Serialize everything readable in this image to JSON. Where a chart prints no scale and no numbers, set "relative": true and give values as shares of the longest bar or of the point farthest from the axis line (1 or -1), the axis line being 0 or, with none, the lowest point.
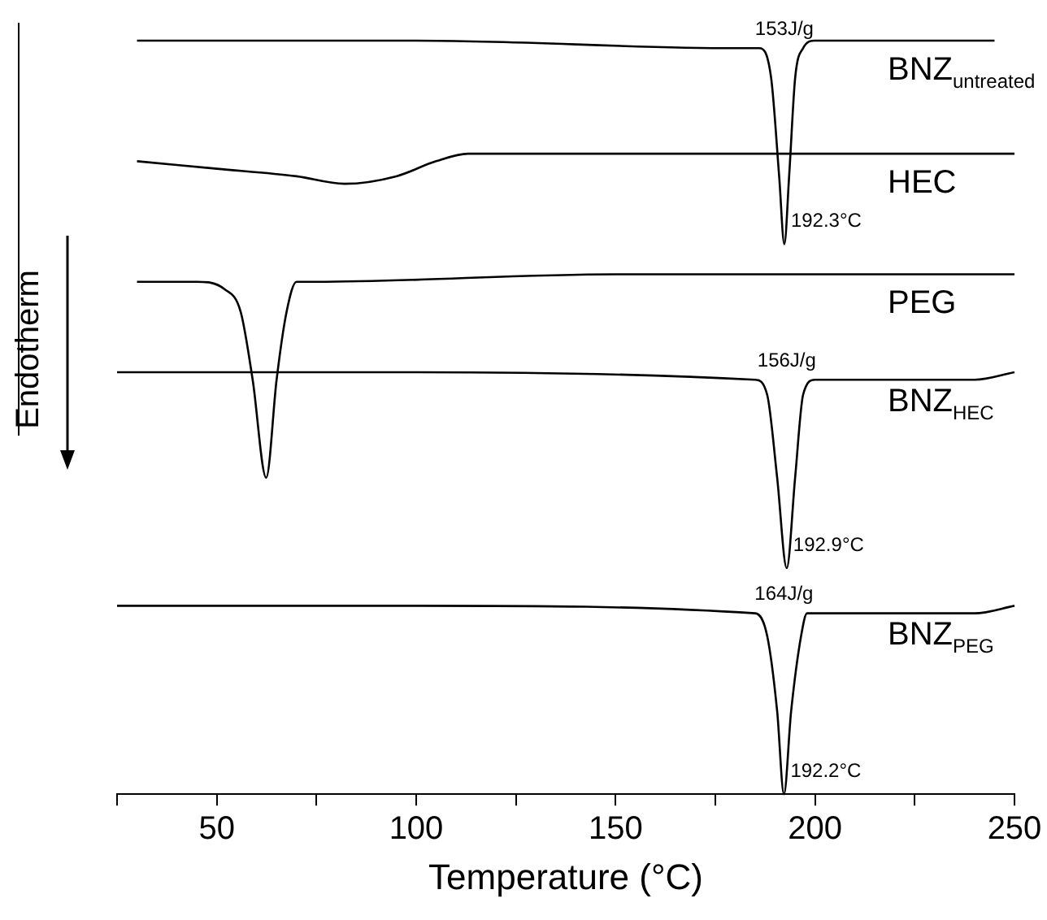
{
  "chart_data": {
    "type": "line",
    "relative": true,
    "xlabel": "Temperature (°C)",
    "ylabel": "Endotherm",
    "xlim": [
      25,
      250
    ],
    "xticks": [
      {
        "value": 25,
        "label": null
      },
      50,
      {
        "value": 75,
        "label": null
      },
      100,
      {
        "value": 125,
        "label": null
      },
      150,
      {
        "value": 175,
        "label": null
      },
      200,
      {
        "value": 225,
        "label": null
      },
      250
    ],
    "grid": false,
    "legend": false,
    "marker": "none",
    "line_style": "solid",
    "series": [
      {
        "name": "BNZ$_{untreated}$",
        "color": "#000000",
        "x": [
          30,
          100,
          180,
          186,
          189,
          191,
          192.3,
          193.5,
          195,
          197,
          200,
          245
        ],
        "values": [
          1.0,
          1.0,
          0.99,
          0.99,
          0.95,
          0.82,
          0.73,
          0.82,
          0.95,
          0.99,
          1.0,
          1.0
        ]
      },
      {
        "name": "HEC",
        "color": "#000000",
        "x": [
          30,
          50,
          70,
          82,
          95,
          105,
          113,
          150,
          200,
          250
        ],
        "values": [
          0.84,
          0.83,
          0.82,
          0.81,
          0.82,
          0.84,
          0.85,
          0.85,
          0.85,
          0.85
        ]
      },
      {
        "name": "PEG",
        "color": "#000000",
        "x": [
          30,
          45,
          52,
          56,
          59,
          62.4,
          65,
          67.5,
          70,
          75,
          150,
          250
        ],
        "values": [
          0.68,
          0.68,
          0.67,
          0.64,
          0.55,
          0.42,
          0.55,
          0.64,
          0.68,
          0.68,
          0.69,
          0.69
        ]
      },
      {
        "name": "BNZ$_{HEC}$",
        "color": "#000000",
        "x": [
          25,
          100,
          185,
          188,
          190.5,
          192.9,
          195,
          197,
          200,
          240,
          250
        ],
        "values": [
          0.56,
          0.56,
          0.55,
          0.53,
          0.42,
          0.3,
          0.42,
          0.53,
          0.55,
          0.55,
          0.56
        ]
      },
      {
        "name": "BNZ$_{PEG}$",
        "color": "#000000",
        "x": [
          25,
          30,
          100,
          185,
          188,
          190.5,
          192.2,
          194,
          196.5,
          198,
          240,
          250
        ],
        "values": [
          0.25,
          0.25,
          0.25,
          0.24,
          0.21,
          0.11,
          0.0,
          0.11,
          0.21,
          0.24,
          0.24,
          0.25
        ]
      }
    ],
    "annotations": [
      "153J/g",
      "192.3°C",
      "156J/g",
      "192.9°C",
      "164J/g",
      "192.2°C"
    ]
  }
}
